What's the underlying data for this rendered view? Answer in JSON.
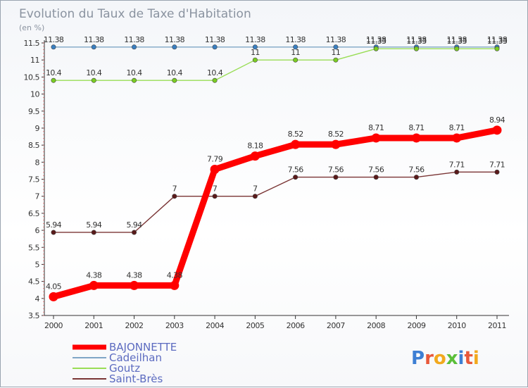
{
  "chart_data": {
    "type": "line",
    "title": "Evolution du Taux de Taxe d'Habitation",
    "ylabel": "(en %)",
    "xlabel": "",
    "x": [
      "2000",
      "2001",
      "2002",
      "2003",
      "2004",
      "2005",
      "2006",
      "2007",
      "2008",
      "2009",
      "2010",
      "2011"
    ],
    "ylim": [
      3.5,
      11.5
    ],
    "yticks": [
      "3.5",
      "4",
      "4.5",
      "5",
      "5.5",
      "6",
      "6.5",
      "7",
      "7.5",
      "8",
      "8.5",
      "9",
      "9.5",
      "10",
      "10.5",
      "11",
      "11.5"
    ],
    "grid": false,
    "legend_position": "bottom-left",
    "series": [
      {
        "name": "BAJONNETTE",
        "color": "#ff0000",
        "marker_color": "#ff0000",
        "values": [
          4.05,
          4.38,
          4.38,
          4.38,
          7.79,
          8.18,
          8.52,
          8.52,
          8.71,
          8.71,
          8.71,
          8.94
        ],
        "labels": [
          "4.05",
          "4.38",
          "4.38",
          "4.38",
          "7.79",
          "8.18",
          "8.52",
          "8.52",
          "8.71",
          "8.71",
          "8.71",
          "8.94"
        ]
      },
      {
        "name": "Cadeilhan",
        "color": "#7fa6c6",
        "marker_color": "#3a7fc0",
        "values": [
          11.38,
          11.38,
          11.38,
          11.38,
          11.38,
          11.38,
          11.38,
          11.38,
          11.38,
          11.38,
          11.38,
          11.38
        ],
        "labels": [
          "11.38",
          "11.38",
          "11.38",
          "11.38",
          "11.38",
          "11.38",
          "11.38",
          "11.38",
          "11.38",
          "11.38",
          "11.38",
          "11.38"
        ]
      },
      {
        "name": "Goutz",
        "color": "#99dd55",
        "marker_color": "#7acc22",
        "values": [
          10.4,
          10.4,
          10.4,
          10.4,
          10.4,
          11,
          11,
          11,
          11.33,
          11.33,
          11.33,
          11.33
        ],
        "labels": [
          "10.4",
          "10.4",
          "10.4",
          "10.4",
          "10.4",
          "11",
          "11",
          "11",
          "11.33",
          "11.33",
          "11.33",
          "11.33"
        ]
      },
      {
        "name": "Saint-Brès",
        "color": "#7a3535",
        "marker_color": "#5a1a1a",
        "values": [
          5.94,
          5.94,
          5.94,
          7,
          7,
          7,
          7.56,
          7.56,
          7.56,
          7.56,
          7.71,
          7.71
        ],
        "labels": [
          "5.94",
          "5.94",
          "5.94",
          "7",
          "7",
          "7",
          "7.56",
          "7.56",
          "7.56",
          "7.56",
          "7.71",
          "7.71"
        ]
      }
    ]
  },
  "logo": {
    "text": "Proxiti"
  }
}
